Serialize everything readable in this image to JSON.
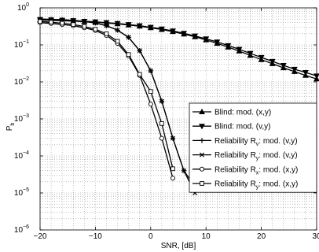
{
  "chart_data": {
    "type": "line",
    "xlabel": "SNR, [dB]",
    "ylabel": "P",
    "ylabel_sub": "b",
    "xlim": [
      -20,
      30
    ],
    "ylim": [
      1e-06,
      1
    ],
    "yscale": "log",
    "grid": true,
    "legend_position": "right",
    "x_ticks": [
      -20,
      -10,
      0,
      10,
      20,
      30
    ],
    "x_tick_labels": [
      "−20",
      "−10",
      "0",
      "10",
      "20",
      "30"
    ],
    "y_ticks": [
      {
        "value": 1,
        "base": "10",
        "exp": "0"
      },
      {
        "value": 0.1,
        "base": "10",
        "exp": "−1"
      },
      {
        "value": 0.01,
        "base": "10",
        "exp": "−2"
      },
      {
        "value": 0.001,
        "base": "10",
        "exp": "−3"
      },
      {
        "value": 0.0001,
        "base": "10",
        "exp": "−4"
      },
      {
        "value": 1e-05,
        "base": "10",
        "exp": "−5"
      },
      {
        "value": 1e-06,
        "base": "10",
        "exp": "−6"
      }
    ],
    "series": [
      {
        "name_main": "Blind: mod. (x,y)",
        "name_sub": "",
        "name_tail": "",
        "marker": "triangle-up",
        "x": [
          -20,
          -18,
          -16,
          -14,
          -12,
          -10,
          -8,
          -6,
          -4,
          -2,
          0,
          2,
          4,
          6,
          8,
          10,
          12,
          14,
          16,
          18,
          20,
          22,
          24,
          26,
          28,
          30
        ],
        "y": [
          0.47,
          0.46,
          0.45,
          0.44,
          0.425,
          0.41,
          0.39,
          0.37,
          0.345,
          0.32,
          0.29,
          0.26,
          0.228,
          0.196,
          0.165,
          0.136,
          0.11,
          0.087,
          0.068,
          0.052,
          0.04,
          0.031,
          0.024,
          0.019,
          0.015,
          0.012
        ]
      },
      {
        "name_main": "Blind: mod. (v,y)",
        "name_sub": "",
        "name_tail": "",
        "marker": "triangle-down",
        "x": [
          -20,
          -18,
          -16,
          -14,
          -12,
          -10,
          -8,
          -6,
          -4,
          -2,
          0,
          2,
          4,
          6,
          8,
          10,
          12,
          14,
          16,
          18,
          20,
          22,
          24,
          26,
          28,
          30
        ],
        "y": [
          0.48,
          0.47,
          0.46,
          0.45,
          0.435,
          0.42,
          0.4,
          0.38,
          0.355,
          0.33,
          0.3,
          0.27,
          0.238,
          0.206,
          0.175,
          0.146,
          0.12,
          0.096,
          0.076,
          0.059,
          0.046,
          0.036,
          0.028,
          0.022,
          0.018,
          0.0145
        ]
      },
      {
        "name_main": "Reliability R",
        "name_sub": "v",
        "name_tail": ": mod. (v,y)",
        "marker": "plus",
        "x": [
          -20,
          -18,
          -16,
          -14,
          -12,
          -10,
          -8,
          -6,
          -4,
          -2,
          0,
          2,
          4,
          6,
          8
        ],
        "y": [
          0.5,
          0.49,
          0.48,
          0.46,
          0.43,
          0.39,
          0.33,
          0.25,
          0.16,
          0.07,
          0.02,
          0.003,
          0.0003,
          4e-05,
          1.5e-05
        ]
      },
      {
        "name_main": "Reliability R",
        "name_sub": "y",
        "name_tail": ": mod. (v,y)",
        "marker": "cross",
        "x": [
          -20,
          -18,
          -16,
          -14,
          -12,
          -10,
          -8,
          -6,
          -4,
          -2,
          0,
          2,
          4,
          6,
          8
        ],
        "y": [
          0.5,
          0.49,
          0.48,
          0.46,
          0.43,
          0.39,
          0.33,
          0.25,
          0.16,
          0.07,
          0.02,
          0.003,
          0.0003,
          4e-05,
          1e-05
        ]
      },
      {
        "name_main": "Reliability R",
        "name_sub": "x",
        "name_tail": ": mod. (x,y)",
        "marker": "circle",
        "x": [
          -20,
          -18,
          -16,
          -14,
          -12,
          -10,
          -8,
          -6,
          -4,
          -2,
          0,
          2,
          4
        ],
        "y": [
          0.4,
          0.38,
          0.355,
          0.33,
          0.29,
          0.245,
          0.18,
          0.11,
          0.05,
          0.015,
          0.0025,
          0.0003,
          2.5e-05
        ]
      },
      {
        "name_main": "Reliability R",
        "name_sub": "y",
        "name_tail": ": mod. (x,y)",
        "marker": "square",
        "x": [
          -20,
          -18,
          -16,
          -14,
          -12,
          -10,
          -8,
          -6,
          -4,
          -2,
          0,
          2,
          4
        ],
        "y": [
          0.43,
          0.41,
          0.385,
          0.355,
          0.315,
          0.265,
          0.2,
          0.125,
          0.055,
          0.016,
          0.0055,
          0.00075,
          4.5e-05
        ]
      }
    ]
  }
}
